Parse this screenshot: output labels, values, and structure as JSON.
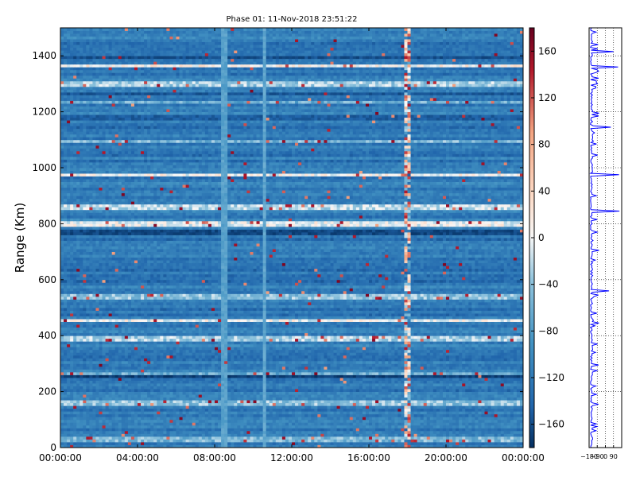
{
  "chart_data": [
    {
      "type": "heatmap",
      "title": "Phase 01: 11-Nov-2018 23:51:22",
      "xlabel": "",
      "ylabel": "Range (Km)",
      "x_ticks": [
        "00:00:00",
        "04:00:00",
        "08:00:00",
        "12:00:00",
        "16:00:00",
        "20:00:00",
        "00:00:00"
      ],
      "xlim_hours": [
        0,
        24
      ],
      "y_ticks": [
        0,
        200,
        400,
        600,
        800,
        1000,
        1200,
        1400
      ],
      "ylim": [
        0,
        1500
      ],
      "colormap": "RdBu_r",
      "colorbar": {
        "range": [
          -180,
          180
        ],
        "ticks": [
          160,
          120,
          80,
          40,
          0,
          -40,
          -80,
          -120,
          -160
        ]
      },
      "background_phase": -120,
      "grid": false,
      "white_bands_km": [
        {
          "range": 1365,
          "phase": 10
        },
        {
          "range": 1300,
          "phase": -30
        },
        {
          "range": 1235,
          "phase": -60
        },
        {
          "range": 1095,
          "phase": -50
        },
        {
          "range": 975,
          "phase": 5
        },
        {
          "range": 860,
          "phase": -20
        },
        {
          "range": 800,
          "phase": 0
        },
        {
          "range": 540,
          "phase": -40
        },
        {
          "range": 455,
          "phase": 0
        },
        {
          "range": 390,
          "phase": -30
        },
        {
          "range": 265,
          "phase": -60
        },
        {
          "range": 160,
          "phase": -40
        },
        {
          "range": 30,
          "phase": -50
        }
      ],
      "dark_bands_km": [
        {
          "range": 1395,
          "phase": -160
        },
        {
          "range": 1265,
          "phase": -155
        },
        {
          "range": 770,
          "phase": -165
        },
        {
          "range": 255,
          "phase": -170
        },
        {
          "range": 1180,
          "phase": -150
        }
      ],
      "light_columns_hours": [
        {
          "time": 8.5,
          "phase": -75
        },
        {
          "time": 10.6,
          "phase": -70
        }
      ],
      "noise_column_hours": 18.0
    },
    {
      "type": "line",
      "title": "",
      "x_ticks": [
        "-180",
        "-90",
        "0",
        "90"
      ],
      "xlim": [
        -180,
        180
      ],
      "ylim": [
        0,
        1500
      ],
      "grid": true,
      "series": [
        {
          "color": "#0000ff",
          "spikes": [
            {
              "range": 1360,
              "value": 140
            },
            {
              "range": 975,
              "value": 150
            },
            {
              "range": 845,
              "value": 155
            },
            {
              "range": 1145,
              "value": 60
            },
            {
              "range": 1415,
              "value": 90
            },
            {
              "range": 560,
              "value": 40
            }
          ]
        }
      ]
    }
  ],
  "colors": {
    "series_line": "#0000ff",
    "axis": "#000000"
  }
}
